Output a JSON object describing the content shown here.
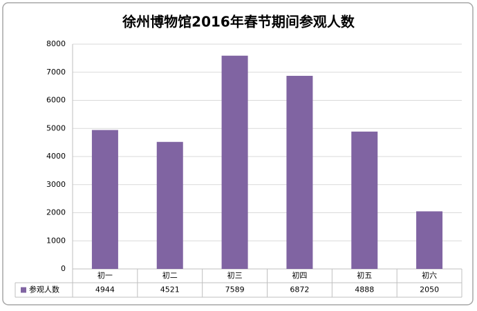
{
  "chart_data": {
    "type": "bar",
    "title": "徐州博物馆2016年春节期间参观人数",
    "categories": [
      "初一",
      "初二",
      "初三",
      "初四",
      "初五",
      "初六"
    ],
    "series": [
      {
        "name": "参观人数",
        "color": "#8064a2",
        "values": [
          4944,
          4521,
          7589,
          6872,
          4888,
          2050
        ]
      }
    ],
    "ylim": [
      0,
      8000
    ],
    "yticks": [
      0,
      1000,
      2000,
      3000,
      4000,
      5000,
      6000,
      7000,
      8000
    ],
    "grid": true,
    "data_table": true
  }
}
